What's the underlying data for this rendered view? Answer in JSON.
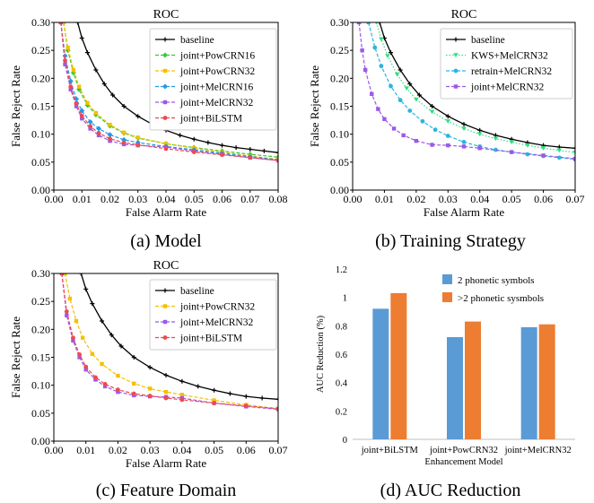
{
  "colors": {
    "baseline": "#000000",
    "KWS+MelCRN32": "#2ee07e",
    "retrain+MelCRN32": "#29b6e0",
    "joint+PowCRN16": "#33cc33",
    "joint+PowCRN32": "#f5c000",
    "joint+MelCRN16": "#1e9be8",
    "joint+MelCRN32": "#9b59e8",
    "joint+BiLSTM": "#f0484f",
    "bar_blue": "#5b9bd5",
    "bar_orange": "#ed7d31"
  },
  "captions": [
    "(a) Model",
    "(b) Training Strategy",
    "(c) Feature Domain",
    "(d) AUC Reduction"
  ],
  "chart_data": [
    {
      "type": "line",
      "title": "ROC",
      "xlabel": "False Alarm Rate",
      "ylabel": "False Reject Rate",
      "xlim": [
        0,
        0.08
      ],
      "ylim": [
        0,
        0.3
      ],
      "xticks": [
        "0.00",
        "0.01",
        "0.02",
        "0.03",
        "0.04",
        "0.05",
        "0.06",
        "0.07",
        "0.08"
      ],
      "yticks": [
        "0.00",
        "0.05",
        "0.10",
        "0.15",
        "0.20",
        "0.25",
        "0.30"
      ],
      "legend_position": "top-right",
      "series": [
        {
          "name": "baseline",
          "x": [
            0.0085,
            0.01,
            0.012,
            0.015,
            0.018,
            0.021,
            0.025,
            0.03,
            0.035,
            0.04,
            0.045,
            0.05,
            0.055,
            0.06,
            0.065,
            0.07,
            0.075,
            0.08
          ],
          "y": [
            0.3,
            0.272,
            0.246,
            0.215,
            0.19,
            0.17,
            0.15,
            0.132,
            0.118,
            0.107,
            0.098,
            0.091,
            0.085,
            0.08,
            0.076,
            0.073,
            0.07,
            0.067
          ]
        },
        {
          "name": "joint+PowCRN16",
          "x": [
            0.0035,
            0.005,
            0.007,
            0.009,
            0.012,
            0.015,
            0.02,
            0.025,
            0.03,
            0.04,
            0.05,
            0.06,
            0.07,
            0.08
          ],
          "y": [
            0.3,
            0.25,
            0.21,
            0.18,
            0.152,
            0.135,
            0.115,
            0.102,
            0.093,
            0.083,
            0.076,
            0.07,
            0.064,
            0.059
          ]
        },
        {
          "name": "joint+PowCRN32",
          "x": [
            0.0035,
            0.005,
            0.007,
            0.009,
            0.012,
            0.015,
            0.02,
            0.025,
            0.03,
            0.04,
            0.05,
            0.06,
            0.07,
            0.08
          ],
          "y": [
            0.3,
            0.255,
            0.215,
            0.185,
            0.156,
            0.138,
            0.117,
            0.103,
            0.094,
            0.083,
            0.075,
            0.068,
            0.061,
            0.055
          ]
        },
        {
          "name": "joint+MelCRN16",
          "x": [
            0.0025,
            0.004,
            0.006,
            0.008,
            0.01,
            0.013,
            0.016,
            0.02,
            0.025,
            0.03,
            0.04,
            0.05,
            0.06,
            0.07,
            0.08
          ],
          "y": [
            0.3,
            0.24,
            0.195,
            0.163,
            0.142,
            0.122,
            0.11,
            0.099,
            0.09,
            0.085,
            0.078,
            0.072,
            0.066,
            0.06,
            0.054
          ]
        },
        {
          "name": "joint+MelCRN32",
          "x": [
            0.0025,
            0.004,
            0.006,
            0.008,
            0.01,
            0.013,
            0.016,
            0.02,
            0.025,
            0.03,
            0.04,
            0.05,
            0.06,
            0.07,
            0.08
          ],
          "y": [
            0.3,
            0.225,
            0.18,
            0.15,
            0.128,
            0.11,
            0.098,
            0.088,
            0.082,
            0.08,
            0.077,
            0.07,
            0.064,
            0.058,
            0.053
          ]
        },
        {
          "name": "joint+BiLSTM",
          "x": [
            0.0025,
            0.004,
            0.006,
            0.008,
            0.01,
            0.013,
            0.016,
            0.02,
            0.025,
            0.03,
            0.04,
            0.05,
            0.06,
            0.07,
            0.08
          ],
          "y": [
            0.3,
            0.232,
            0.185,
            0.155,
            0.133,
            0.114,
            0.102,
            0.092,
            0.085,
            0.081,
            0.074,
            0.068,
            0.063,
            0.058,
            0.053
          ]
        }
      ]
    },
    {
      "type": "line",
      "title": "ROC",
      "xlabel": "False Alarm Rate",
      "ylabel": "False Reject Rate",
      "xlim": [
        0,
        0.07
      ],
      "ylim": [
        0,
        0.3
      ],
      "xticks": [
        "0.00",
        "0.01",
        "0.02",
        "0.03",
        "0.04",
        "0.05",
        "0.06",
        "0.07"
      ],
      "yticks": [
        "0.00",
        "0.05",
        "0.10",
        "0.15",
        "0.20",
        "0.25",
        "0.30"
      ],
      "legend_position": "top-right",
      "series": [
        {
          "name": "baseline",
          "x": [
            0.0085,
            0.01,
            0.012,
            0.015,
            0.018,
            0.021,
            0.025,
            0.03,
            0.035,
            0.04,
            0.045,
            0.05,
            0.055,
            0.06,
            0.065,
            0.07
          ],
          "y": [
            0.3,
            0.272,
            0.246,
            0.215,
            0.19,
            0.17,
            0.15,
            0.132,
            0.118,
            0.107,
            0.098,
            0.091,
            0.085,
            0.08,
            0.077,
            0.075
          ]
        },
        {
          "name": "KWS+MelCRN32",
          "x": [
            0.0075,
            0.009,
            0.011,
            0.014,
            0.017,
            0.02,
            0.025,
            0.03,
            0.035,
            0.04,
            0.045,
            0.05,
            0.055,
            0.06,
            0.065,
            0.07
          ],
          "y": [
            0.3,
            0.27,
            0.24,
            0.207,
            0.182,
            0.162,
            0.14,
            0.123,
            0.11,
            0.1,
            0.092,
            0.086,
            0.08,
            0.075,
            0.071,
            0.067
          ]
        },
        {
          "name": "retrain+MelCRN32",
          "x": [
            0.005,
            0.007,
            0.009,
            0.012,
            0.015,
            0.018,
            0.022,
            0.026,
            0.03,
            0.035,
            0.04,
            0.045,
            0.05,
            0.055,
            0.06,
            0.065,
            0.07
          ],
          "y": [
            0.3,
            0.255,
            0.222,
            0.186,
            0.161,
            0.142,
            0.123,
            0.108,
            0.097,
            0.086,
            0.078,
            0.072,
            0.068,
            0.064,
            0.061,
            0.058,
            0.055
          ]
        },
        {
          "name": "joint+MelCRN32",
          "x": [
            0.002,
            0.003,
            0.004,
            0.006,
            0.008,
            0.01,
            0.013,
            0.016,
            0.02,
            0.025,
            0.03,
            0.035,
            0.04,
            0.05,
            0.06,
            0.07
          ],
          "y": [
            0.3,
            0.25,
            0.215,
            0.172,
            0.145,
            0.127,
            0.11,
            0.098,
            0.088,
            0.081,
            0.08,
            0.078,
            0.075,
            0.068,
            0.062,
            0.056
          ]
        }
      ]
    },
    {
      "type": "line",
      "title": "ROC",
      "xlabel": "False Alarm Rate",
      "ylabel": "False Reject Rate",
      "xlim": [
        0,
        0.07
      ],
      "ylim": [
        0,
        0.3
      ],
      "xticks": [
        "0.00",
        "0.01",
        "0.02",
        "0.03",
        "0.04",
        "0.05",
        "0.06",
        "0.07"
      ],
      "yticks": [
        "0.00",
        "0.05",
        "0.10",
        "0.15",
        "0.20",
        "0.25",
        "0.30"
      ],
      "legend_position": "top-right",
      "series": [
        {
          "name": "baseline",
          "x": [
            0.0085,
            0.01,
            0.012,
            0.015,
            0.018,
            0.021,
            0.025,
            0.03,
            0.035,
            0.04,
            0.045,
            0.05,
            0.055,
            0.06,
            0.065,
            0.07
          ],
          "y": [
            0.3,
            0.272,
            0.246,
            0.215,
            0.19,
            0.17,
            0.15,
            0.132,
            0.118,
            0.107,
            0.098,
            0.091,
            0.085,
            0.08,
            0.077,
            0.075
          ]
        },
        {
          "name": "joint+PowCRN32",
          "x": [
            0.0035,
            0.005,
            0.007,
            0.009,
            0.012,
            0.015,
            0.02,
            0.025,
            0.03,
            0.035,
            0.04,
            0.05,
            0.06,
            0.07
          ],
          "y": [
            0.3,
            0.255,
            0.215,
            0.185,
            0.156,
            0.138,
            0.117,
            0.103,
            0.094,
            0.088,
            0.083,
            0.073,
            0.065,
            0.058
          ]
        },
        {
          "name": "joint+MelCRN32",
          "x": [
            0.0025,
            0.004,
            0.006,
            0.008,
            0.01,
            0.013,
            0.016,
            0.02,
            0.025,
            0.03,
            0.035,
            0.04,
            0.05,
            0.06,
            0.07
          ],
          "y": [
            0.3,
            0.225,
            0.18,
            0.15,
            0.128,
            0.11,
            0.098,
            0.088,
            0.082,
            0.08,
            0.079,
            0.077,
            0.068,
            0.062,
            0.057
          ]
        },
        {
          "name": "joint+BiLSTM",
          "x": [
            0.0025,
            0.004,
            0.006,
            0.008,
            0.01,
            0.013,
            0.016,
            0.02,
            0.025,
            0.03,
            0.035,
            0.04,
            0.05,
            0.06,
            0.07
          ],
          "y": [
            0.3,
            0.232,
            0.185,
            0.155,
            0.133,
            0.114,
            0.102,
            0.092,
            0.085,
            0.081,
            0.077,
            0.074,
            0.068,
            0.063,
            0.058
          ]
        }
      ]
    },
    {
      "type": "bar",
      "title": "",
      "xlabel": "Enhancement Model",
      "ylabel": "AUC Reduction (%)",
      "ylim": [
        0,
        1.2
      ],
      "yticks": [
        "0",
        "0.2",
        "0.4",
        "0.6",
        "0.8",
        "1",
        "1.2"
      ],
      "categories": [
        "joint+BiLSTM",
        "joint+PowCRN32",
        "joint+MelCRN32"
      ],
      "legend_position": "top-right",
      "series": [
        {
          "name": "2 phonetic symbols",
          "values": [
            0.92,
            0.72,
            0.79
          ]
        },
        {
          "name": ">2 phonetic sysmbols",
          "values": [
            1.03,
            0.83,
            0.81
          ]
        }
      ]
    }
  ]
}
